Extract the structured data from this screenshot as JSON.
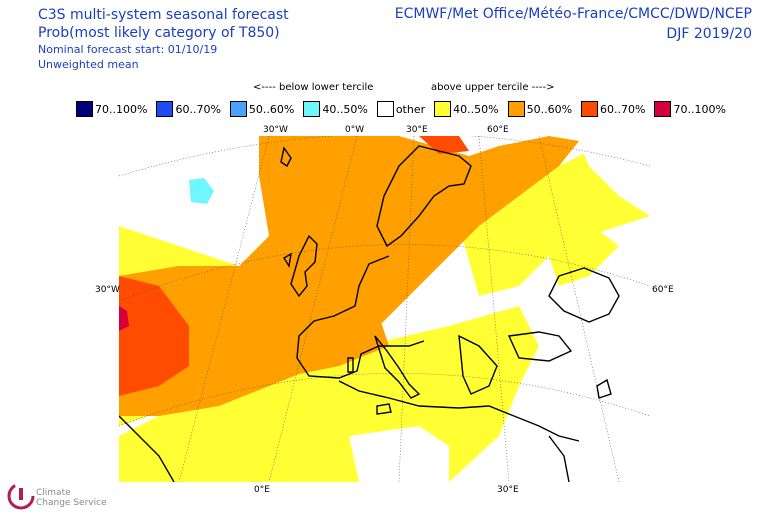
{
  "header": {
    "title_line1": "C3S multi-system seasonal forecast",
    "title_line2": "Prob(most likely category of T850)",
    "title_line3": "Nominal forecast start: 01/10/19",
    "title_line4": "Unweighted mean",
    "centres": "ECMWF/Met Office/Météo-France/CMCC/DWD/NCEP",
    "season": "DJF 2019/20"
  },
  "legend": {
    "below_label": "<---- below lower tercile",
    "above_label": "above upper tercile ---->",
    "items": [
      {
        "label": "70..100%",
        "color": "#00007a"
      },
      {
        "label": "60..70%",
        "color": "#1f4cf0"
      },
      {
        "label": "50..60%",
        "color": "#4aa2ff"
      },
      {
        "label": "40..50%",
        "color": "#6ff6ff"
      },
      {
        "label": "other",
        "color": "#ffffff"
      },
      {
        "label": "40..50%",
        "color": "#ffff33"
      },
      {
        "label": "50..60%",
        "color": "#ff9f00"
      },
      {
        "label": "60..70%",
        "color": "#ff4c00"
      },
      {
        "label": "70..100%",
        "color": "#d4003a"
      }
    ]
  },
  "axes": {
    "top": [
      "30°W",
      "0°W",
      "30°E",
      "60°E"
    ],
    "left": "30°W",
    "right": "60°E",
    "bottom": [
      "0°E",
      "30°E"
    ]
  },
  "logo": {
    "name": "Climate Change Service",
    "line1": "Climate",
    "line2": "Change Service"
  }
}
